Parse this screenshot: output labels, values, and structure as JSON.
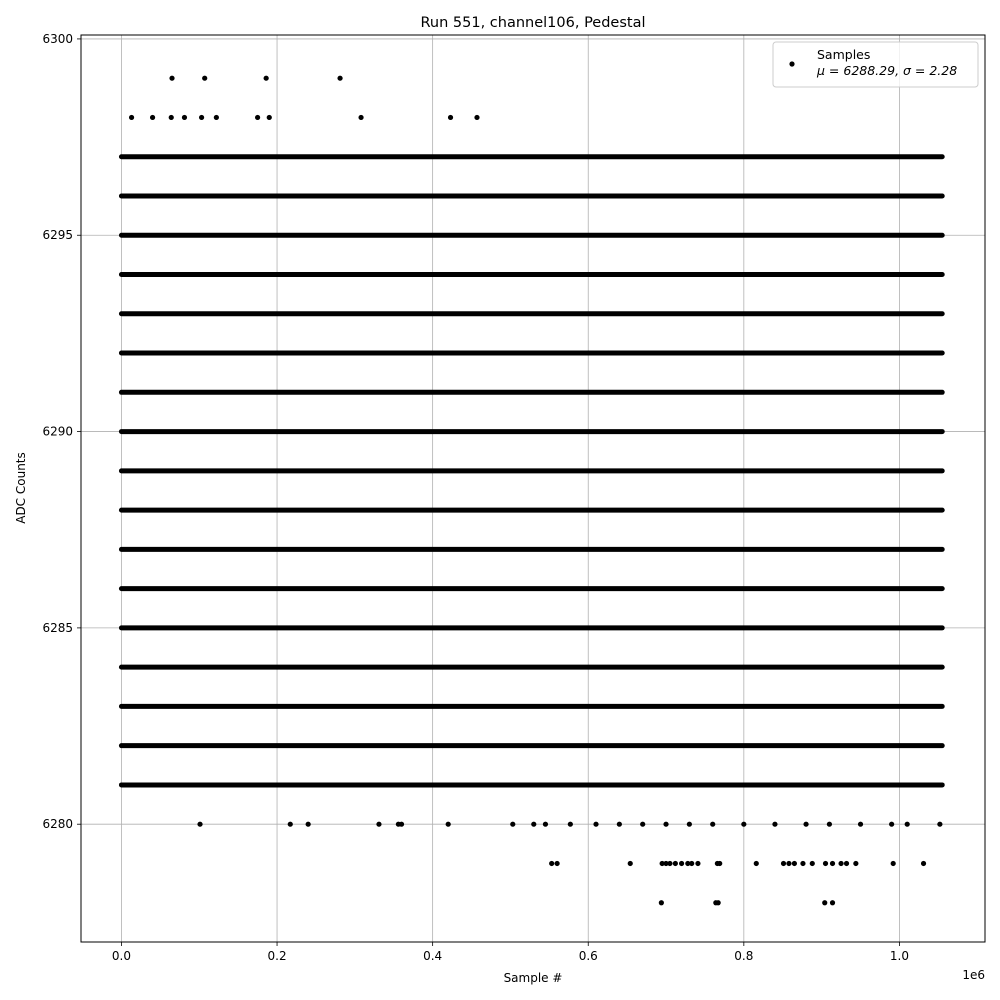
{
  "chart_data": {
    "type": "scatter",
    "title": "Run 551, channel106, Pedestal",
    "xlabel": "Sample #",
    "ylabel": "ADC Counts",
    "x_offset_label": "1e6",
    "xlim": [
      -0.052,
      1.11
    ],
    "ylim": [
      6277,
      6300.1
    ],
    "xticks": [
      0.0,
      0.2,
      0.4,
      0.6,
      0.8,
      1.0
    ],
    "xtick_labels": [
      "0.0",
      "0.2",
      "0.4",
      "0.6",
      "0.8",
      "1.0"
    ],
    "yticks": [
      6280,
      6285,
      6290,
      6295,
      6300
    ],
    "ytick_labels": [
      "6280",
      "6285",
      "6290",
      "6295",
      "6300"
    ],
    "grid": true,
    "legend_position": "top-right",
    "marker_color": "#000000",
    "series": [
      {
        "name": "Samples",
        "label_line2": "μ = 6288.29, σ = 2.28",
        "dense_levels": [
          6281,
          6282,
          6283,
          6284,
          6285,
          6286,
          6287,
          6288,
          6289,
          6290,
          6291,
          6292,
          6293,
          6294,
          6295,
          6296,
          6297
        ],
        "dense_x_range": [
          0.0,
          1.055
        ],
        "sparse_points": [
          {
            "x": 0.065,
            "y": 6299
          },
          {
            "x": 0.107,
            "y": 6299
          },
          {
            "x": 0.186,
            "y": 6299
          },
          {
            "x": 0.281,
            "y": 6299
          },
          {
            "x": 0.013,
            "y": 6298
          },
          {
            "x": 0.04,
            "y": 6298
          },
          {
            "x": 0.064,
            "y": 6298
          },
          {
            "x": 0.081,
            "y": 6298
          },
          {
            "x": 0.103,
            "y": 6298
          },
          {
            "x": 0.122,
            "y": 6298
          },
          {
            "x": 0.175,
            "y": 6298
          },
          {
            "x": 0.19,
            "y": 6298
          },
          {
            "x": 0.308,
            "y": 6298
          },
          {
            "x": 0.423,
            "y": 6298
          },
          {
            "x": 0.457,
            "y": 6298
          },
          {
            "x": 0.101,
            "y": 6280
          },
          {
            "x": 0.217,
            "y": 6280
          },
          {
            "x": 0.24,
            "y": 6280
          },
          {
            "x": 0.331,
            "y": 6280
          },
          {
            "x": 0.356,
            "y": 6280
          },
          {
            "x": 0.36,
            "y": 6280
          },
          {
            "x": 0.42,
            "y": 6280
          },
          {
            "x": 0.503,
            "y": 6280
          },
          {
            "x": 0.53,
            "y": 6280
          },
          {
            "x": 0.545,
            "y": 6280
          },
          {
            "x": 0.577,
            "y": 6280
          },
          {
            "x": 0.61,
            "y": 6280
          },
          {
            "x": 0.64,
            "y": 6280
          },
          {
            "x": 0.67,
            "y": 6280
          },
          {
            "x": 0.7,
            "y": 6280
          },
          {
            "x": 0.73,
            "y": 6280
          },
          {
            "x": 0.76,
            "y": 6280
          },
          {
            "x": 0.8,
            "y": 6280
          },
          {
            "x": 0.84,
            "y": 6280
          },
          {
            "x": 0.88,
            "y": 6280
          },
          {
            "x": 0.91,
            "y": 6280
          },
          {
            "x": 0.95,
            "y": 6280
          },
          {
            "x": 0.99,
            "y": 6280
          },
          {
            "x": 1.01,
            "y": 6280
          },
          {
            "x": 1.052,
            "y": 6280
          },
          {
            "x": 0.553,
            "y": 6279
          },
          {
            "x": 0.56,
            "y": 6279
          },
          {
            "x": 0.654,
            "y": 6279
          },
          {
            "x": 0.695,
            "y": 6279
          },
          {
            "x": 0.7,
            "y": 6279
          },
          {
            "x": 0.705,
            "y": 6279
          },
          {
            "x": 0.712,
            "y": 6279
          },
          {
            "x": 0.72,
            "y": 6279
          },
          {
            "x": 0.728,
            "y": 6279
          },
          {
            "x": 0.733,
            "y": 6279
          },
          {
            "x": 0.741,
            "y": 6279
          },
          {
            "x": 0.766,
            "y": 6279
          },
          {
            "x": 0.769,
            "y": 6279
          },
          {
            "x": 0.816,
            "y": 6279
          },
          {
            "x": 0.851,
            "y": 6279
          },
          {
            "x": 0.858,
            "y": 6279
          },
          {
            "x": 0.865,
            "y": 6279
          },
          {
            "x": 0.876,
            "y": 6279
          },
          {
            "x": 0.888,
            "y": 6279
          },
          {
            "x": 0.905,
            "y": 6279
          },
          {
            "x": 0.914,
            "y": 6279
          },
          {
            "x": 0.925,
            "y": 6279
          },
          {
            "x": 0.932,
            "y": 6279
          },
          {
            "x": 0.944,
            "y": 6279
          },
          {
            "x": 0.992,
            "y": 6279
          },
          {
            "x": 1.031,
            "y": 6279
          },
          {
            "x": 0.694,
            "y": 6278
          },
          {
            "x": 0.764,
            "y": 6278
          },
          {
            "x": 0.767,
            "y": 6278
          },
          {
            "x": 0.904,
            "y": 6278
          },
          {
            "x": 0.914,
            "y": 6278
          }
        ]
      }
    ]
  }
}
